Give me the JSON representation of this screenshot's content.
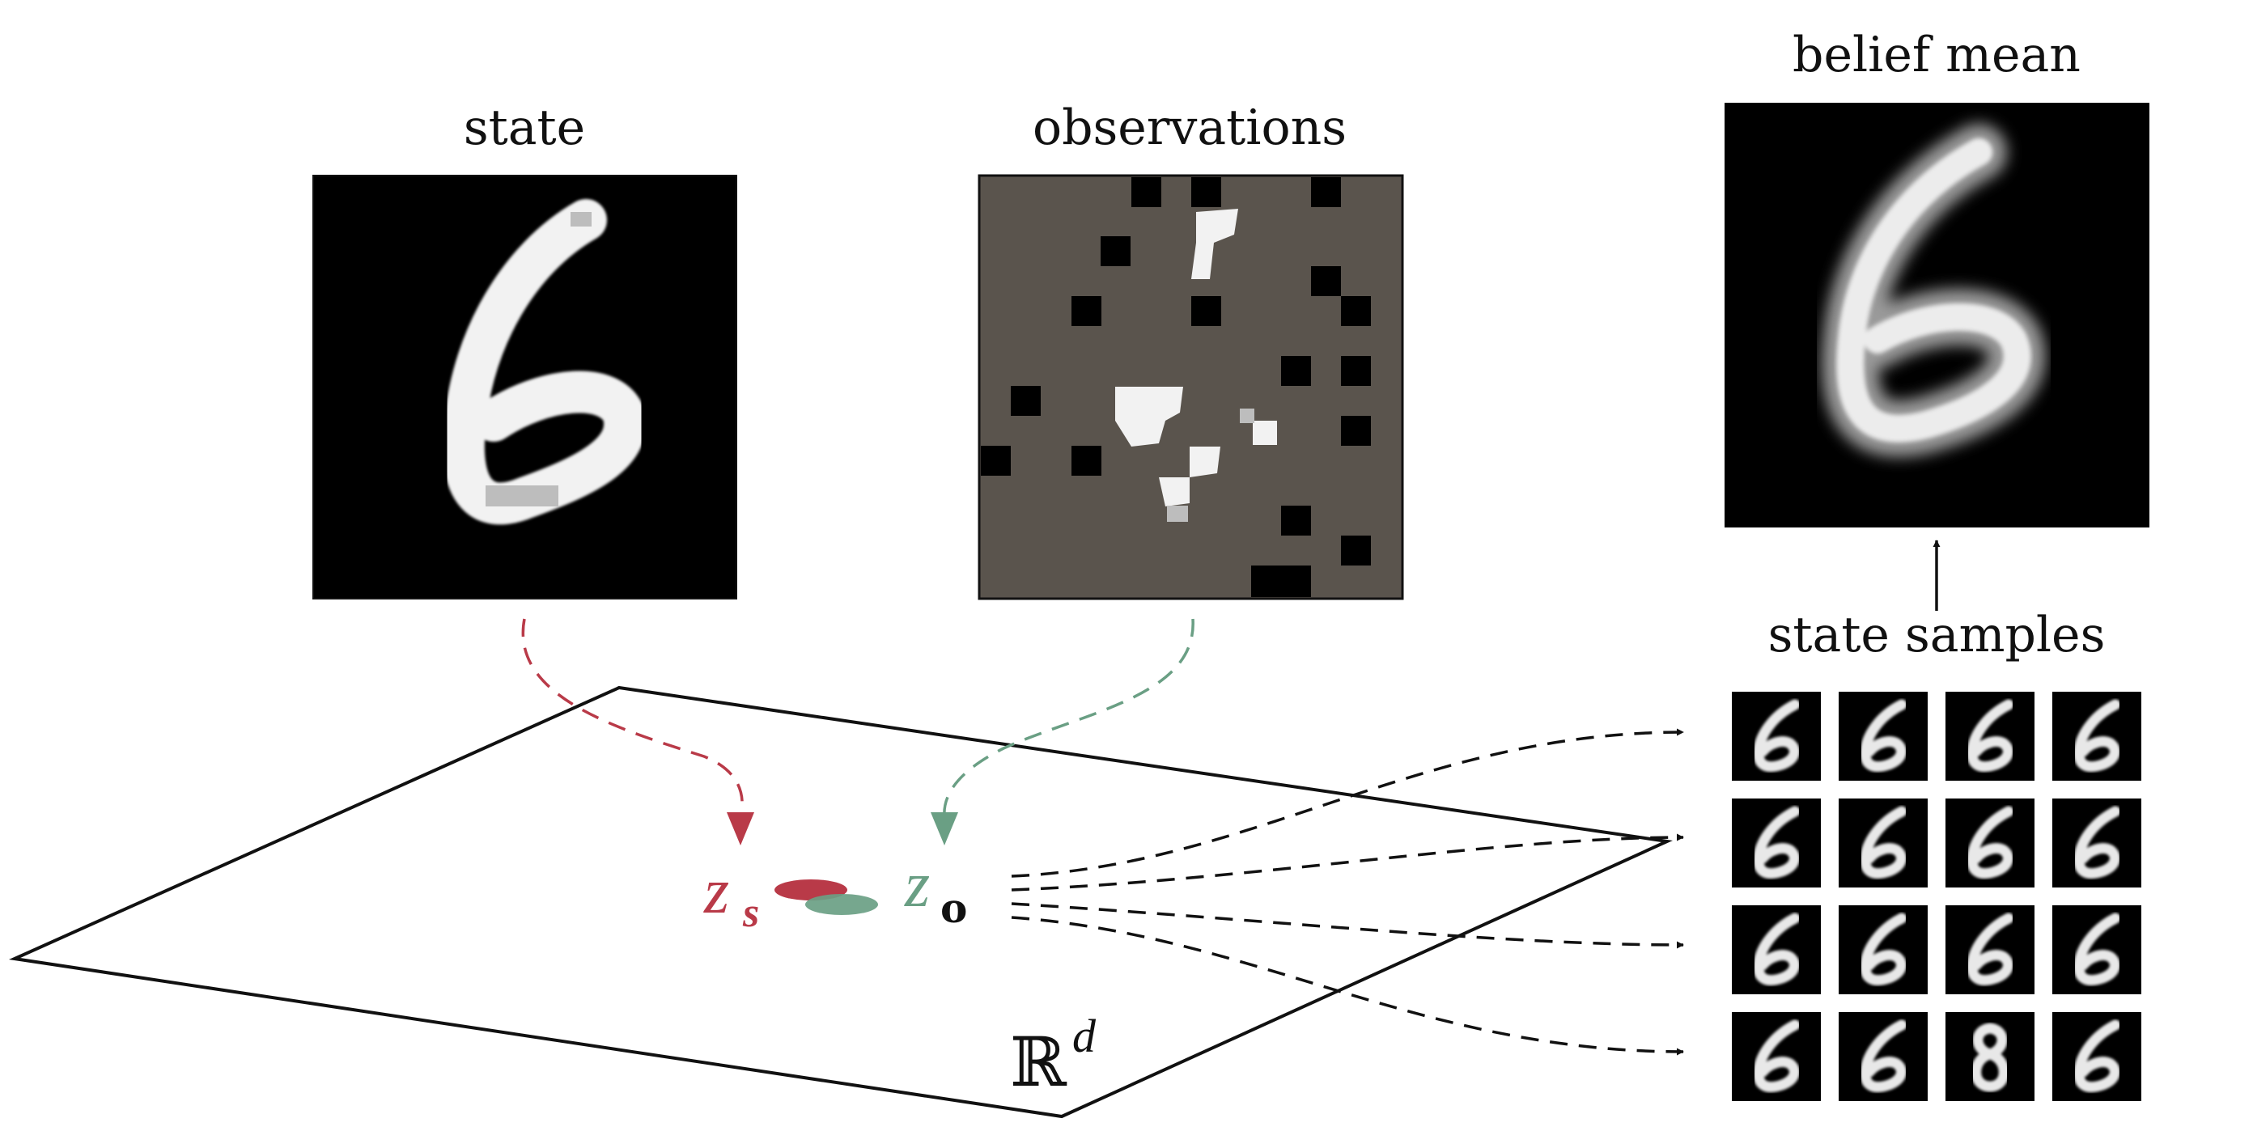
{
  "labels": {
    "state": "state",
    "observations": "observations",
    "belief_mean": "belief mean",
    "state_samples": "state samples",
    "z_state_base": "z",
    "z_state_sub": "s",
    "z_obs_base": "z",
    "z_obs_sub": "o",
    "space_symbol": "ℝ",
    "space_exponent": "d"
  },
  "colors": {
    "state_accent": "#b93a48",
    "observation_accent": "#6a9f84",
    "masked_gray": "#5a544d",
    "ink": "#111111"
  },
  "digit_shown": 6,
  "sample_grid": {
    "rows": 4,
    "cols": 4
  },
  "sample_digits": [
    [
      6,
      6,
      6,
      6
    ],
    [
      6,
      6,
      6,
      6
    ],
    [
      6,
      6,
      6,
      6
    ],
    [
      6,
      6,
      8,
      6
    ]
  ]
}
